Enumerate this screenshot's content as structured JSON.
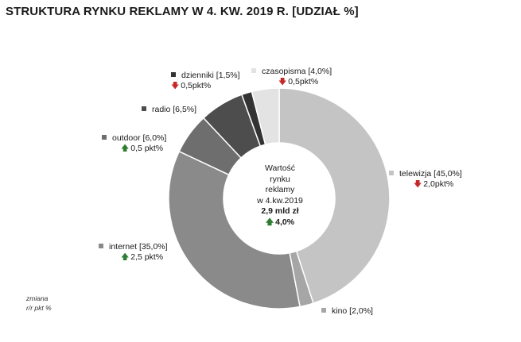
{
  "title": "STRUKTURA RYNKU REKLAMY W 4. KW. 2019 R. [UDZIAŁ %]",
  "center": {
    "line1": "Wartość",
    "line2": "rynku",
    "line3": "reklamy",
    "line4": "w 4.kw.2019",
    "value": "2,9 mld zł",
    "change": "4,0%",
    "change_dir": "up"
  },
  "note": {
    "line1": "zmiana",
    "line2": "r/r pkt %"
  },
  "chart_data": {
    "type": "pie",
    "donut": true,
    "title": "STRUKTURA RYNKU REKLAMY W 4. KW. 2019 R. [UDZIAŁ %]",
    "slices": [
      {
        "label": "telewizja [45,0%]",
        "value": 45.0,
        "color": "#c4c4c4",
        "change": "2,0pkt%",
        "change_dir": "down"
      },
      {
        "label": "kino [2,0%]",
        "value": 2.0,
        "color": "#a6a6a6",
        "change": "",
        "change_dir": ""
      },
      {
        "label": "internet [35,0%]",
        "value": 35.0,
        "color": "#8a8a8a",
        "change": "2,5 pkt%",
        "change_dir": "up"
      },
      {
        "label": "outdoor [6,0%]",
        "value": 6.0,
        "color": "#6e6e6e",
        "change": "0,5 pkt%",
        "change_dir": "up"
      },
      {
        "label": "radio [6,5%]",
        "value": 6.5,
        "color": "#4d4d4d",
        "change": "",
        "change_dir": ""
      },
      {
        "label": "dzienniki [1,5%]",
        "value": 1.5,
        "color": "#333333",
        "change": "0,5pkt%",
        "change_dir": "down"
      },
      {
        "label": "czasopisma [4,0%]",
        "value": 4.0,
        "color": "#e3e3e3",
        "change": "0,5pkt%",
        "change_dir": "down"
      }
    ]
  }
}
